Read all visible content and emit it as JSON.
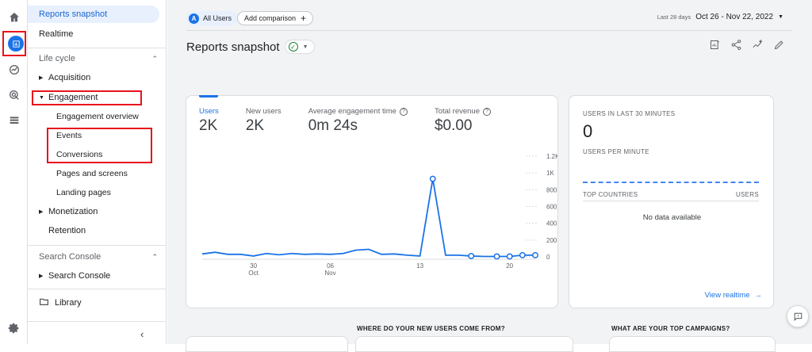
{
  "rail": {
    "icons": [
      "home-icon",
      "reports-icon",
      "explore-icon",
      "advertising-icon",
      "configure-icon",
      "settings-icon"
    ]
  },
  "nav": {
    "reports_snapshot": "Reports snapshot",
    "realtime": "Realtime",
    "lifecycle": "Life cycle",
    "acquisition": "Acquisition",
    "engagement": "Engagement",
    "engagement_overview": "Engagement overview",
    "events": "Events",
    "conversions": "Conversions",
    "pages_and_screens": "Pages and screens",
    "landing_pages": "Landing pages",
    "monetization": "Monetization",
    "retention": "Retention",
    "search_console_section": "Search Console",
    "search_console": "Search Console",
    "library": "Library"
  },
  "topbar": {
    "all_users_avatar": "A",
    "all_users": "All Users",
    "add_comparison": "Add comparison",
    "date_prefix": "Last 28 days",
    "date_range": "Oct 26 - Nov 22, 2022"
  },
  "page": {
    "title": "Reports snapshot"
  },
  "metrics": [
    {
      "label": "Users",
      "value": "2K"
    },
    {
      "label": "New users",
      "value": "2K"
    },
    {
      "label": "Average engagement time",
      "value": "0m 24s"
    },
    {
      "label": "Total revenue",
      "value": "$0.00"
    }
  ],
  "chart_data": {
    "type": "line",
    "x_ticks": [
      {
        "day": "30",
        "month": "Oct"
      },
      {
        "day": "06",
        "month": "Nov"
      },
      {
        "day": "13",
        "month": ""
      },
      {
        "day": "20",
        "month": ""
      }
    ],
    "y_ticks": [
      "1.2K",
      "1K",
      "800",
      "600",
      "400",
      "200",
      "0"
    ],
    "ylim": [
      0,
      1200
    ],
    "series": [
      {
        "values": [
          35,
          55,
          30,
          30,
          10,
          40,
          25,
          40,
          30,
          35,
          30,
          40,
          80,
          90,
          30,
          35,
          20,
          10,
          930,
          20,
          20,
          10,
          5,
          5,
          5,
          20,
          20
        ]
      }
    ]
  },
  "realtime": {
    "users_label": "USERS IN LAST 30 MINUTES",
    "users_value": "0",
    "per_minute_label": "USERS PER MINUTE",
    "top_countries": "TOP COUNTRIES",
    "users_col": "USERS",
    "no_data": "No data available",
    "view_realtime": "View realtime"
  },
  "bottom": {
    "new_users_q": "WHERE DO YOUR NEW USERS COME FROM?",
    "campaigns_q": "WHAT ARE YOUR TOP CAMPAIGNS?"
  },
  "colors": {
    "accent": "#1a73e8",
    "highlight_box": "#e8131b"
  }
}
